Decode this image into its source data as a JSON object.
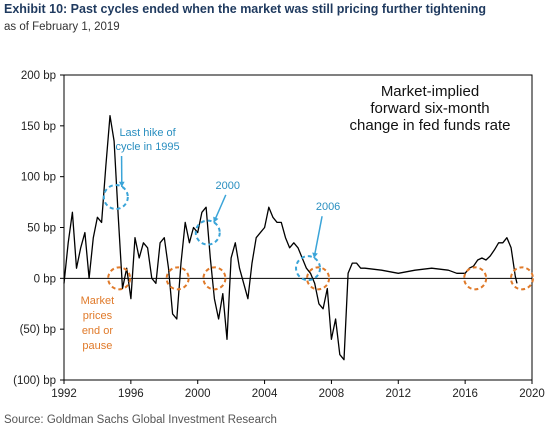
{
  "header": {
    "title": "Exhibit 10: Past cycles ended when the market was still pricing further tightening",
    "subtitle": "as of February 1, 2019"
  },
  "footer": {
    "source": "Source: Goldman Sachs Global Investment Research"
  },
  "colors": {
    "title": "#1f3a5f",
    "series": "#000000",
    "blue_marker": "#3aa4d8",
    "orange_marker": "#e07a2a"
  },
  "chart_data": {
    "type": "line",
    "title": "Market-implied forward six-month change in fed funds rate",
    "inset_lines": [
      "Market-implied",
      "forward six-month",
      "change in fed funds rate"
    ],
    "xlabel": "",
    "ylabel": "",
    "xlim": [
      1992,
      2020
    ],
    "ylim": [
      -100,
      200
    ],
    "x_ticks": [
      1992,
      1996,
      2000,
      2004,
      2008,
      2012,
      2016,
      2020
    ],
    "y_ticks": [
      {
        "value": 200,
        "label": "200 bp"
      },
      {
        "value": 150,
        "label": "150 bp"
      },
      {
        "value": 100,
        "label": "100 bp"
      },
      {
        "value": 50,
        "label": "50 bp"
      },
      {
        "value": 0,
        "label": "0 bp"
      },
      {
        "value": -50,
        "label": "(50) bp"
      },
      {
        "value": -100,
        "label": "(100) bp"
      }
    ],
    "grid": false,
    "zero_line": true,
    "series": [
      {
        "x": [
          1992.0,
          1992.25,
          1992.5,
          1992.75,
          1993.0,
          1993.25,
          1993.5,
          1993.75,
          1994.0,
          1994.25,
          1994.5,
          1994.75,
          1995.0,
          1995.25,
          1995.5,
          1995.75,
          1996.0,
          1996.25,
          1996.5,
          1996.75,
          1997.0,
          1997.25,
          1997.5,
          1997.75,
          1998.0,
          1998.25,
          1998.5,
          1998.75,
          1999.0,
          1999.25,
          1999.5,
          1999.75,
          2000.0,
          2000.25,
          2000.5,
          2000.75,
          2001.0,
          2001.25,
          2001.5,
          2001.75,
          2002.0,
          2002.25,
          2002.5,
          2002.75,
          2003.0,
          2003.25,
          2003.5,
          2003.75,
          2004.0,
          2004.25,
          2004.5,
          2004.75,
          2005.0,
          2005.25,
          2005.5,
          2005.75,
          2006.0,
          2006.25,
          2006.5,
          2006.75,
          2007.0,
          2007.25,
          2007.5,
          2007.75,
          2008.0,
          2008.25,
          2008.5,
          2008.75,
          2009.0,
          2009.25,
          2009.5,
          2009.75,
          2010.0,
          2011.0,
          2012.0,
          2013.0,
          2014.0,
          2015.0,
          2015.5,
          2015.75,
          2016.0,
          2016.25,
          2016.5,
          2016.75,
          2017.0,
          2017.25,
          2017.5,
          2017.75,
          2018.0,
          2018.25,
          2018.5,
          2018.75,
          2019.0,
          2019.1
        ],
        "y": [
          -5,
          35,
          65,
          10,
          30,
          45,
          0,
          40,
          60,
          55,
          110,
          160,
          135,
          60,
          -10,
          10,
          -20,
          40,
          20,
          35,
          30,
          0,
          -5,
          35,
          40,
          10,
          -35,
          -40,
          15,
          55,
          35,
          50,
          45,
          65,
          70,
          20,
          -20,
          -40,
          -15,
          -60,
          20,
          35,
          10,
          -5,
          -20,
          15,
          40,
          45,
          50,
          70,
          60,
          55,
          55,
          40,
          30,
          35,
          30,
          20,
          10,
          5,
          -5,
          -25,
          -30,
          -10,
          -60,
          -40,
          -75,
          -80,
          5,
          15,
          15,
          10,
          10,
          8,
          5,
          8,
          10,
          8,
          5,
          5,
          5,
          10,
          12,
          18,
          20,
          18,
          22,
          28,
          35,
          35,
          40,
          30,
          2,
          -5
        ]
      }
    ],
    "annotations": [
      {
        "text": [
          "Last hike of",
          "cycle in 1995"
        ],
        "color": "blue",
        "x": 1995.1,
        "y": 80
      },
      {
        "text": [
          "2000"
        ],
        "color": "blue",
        "x": 2000.6,
        "y": 45
      },
      {
        "text": [
          "2006"
        ],
        "color": "blue",
        "x": 2006.6,
        "y": 10
      },
      {
        "text": [
          "Market",
          "prices",
          "end or",
          "pause"
        ],
        "color": "orange",
        "marks_x": [
          1995.3,
          1998.8,
          2001.0,
          2007.2,
          2016.6,
          2019.4
        ],
        "y": 0
      }
    ]
  }
}
